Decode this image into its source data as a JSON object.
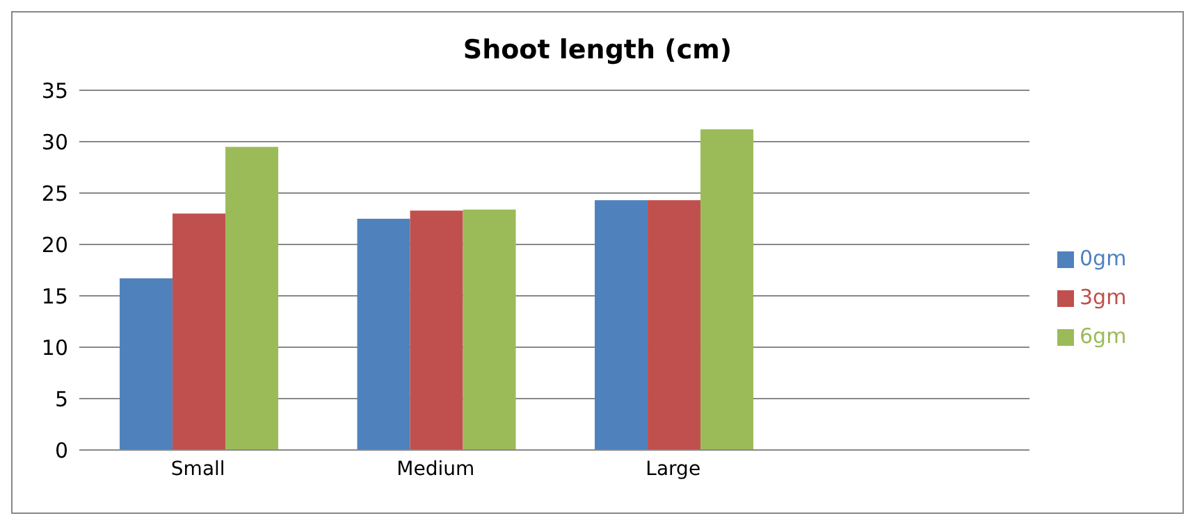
{
  "chart_data": {
    "type": "bar",
    "title": "Shoot length (cm)",
    "categories": [
      "Small",
      "Medium",
      "Large",
      null
    ],
    "series": [
      {
        "name": "0gm",
        "color": "#4f81bd",
        "values": [
          16.7,
          22.5,
          24.3,
          null
        ]
      },
      {
        "name": "3gm",
        "color": "#c0504d",
        "values": [
          23.0,
          23.3,
          24.3,
          null
        ]
      },
      {
        "name": "6gm",
        "color": "#9bbb59",
        "values": [
          29.5,
          23.4,
          31.2,
          null
        ]
      }
    ],
    "ylim": [
      0,
      35
    ],
    "yticks": [
      0,
      5,
      10,
      15,
      20,
      25,
      30,
      35
    ],
    "grid": "y",
    "legend": "right"
  }
}
